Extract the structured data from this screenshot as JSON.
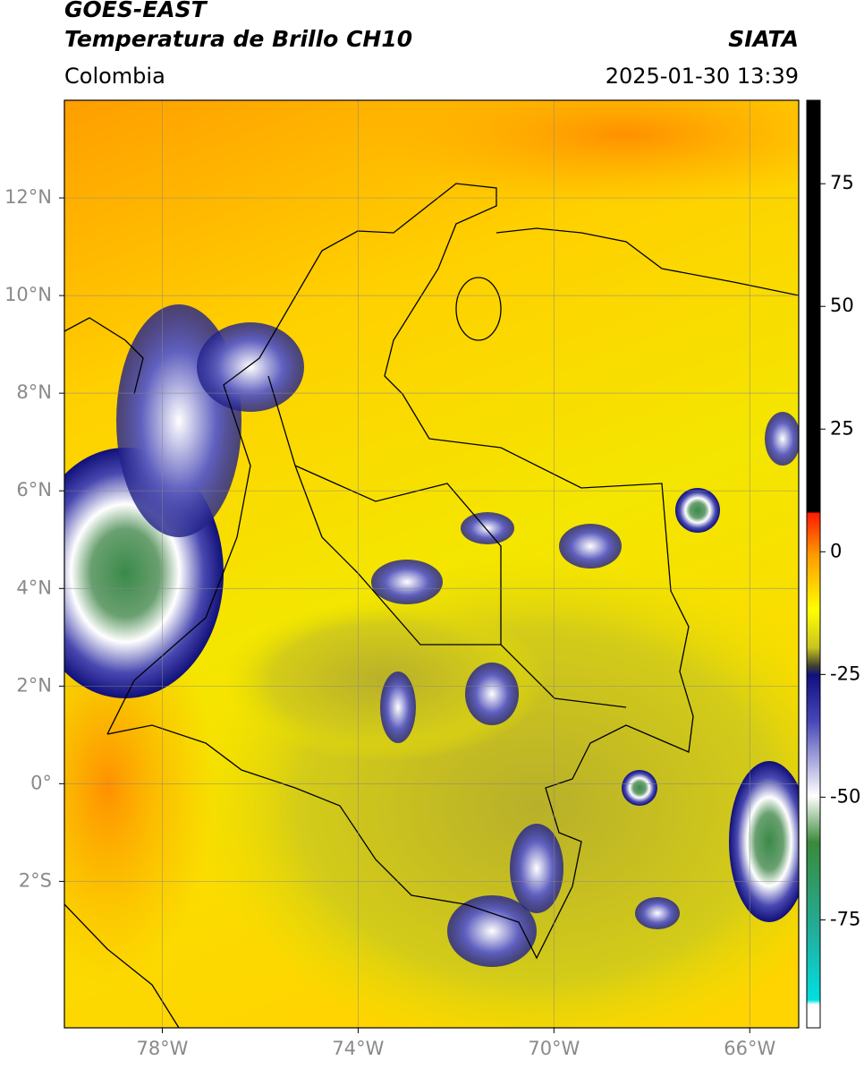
{
  "header": {
    "satellite": "GOES-EAST",
    "product": "Temperatura de Brillo CH10",
    "source": "SIATA",
    "region": "Colombia",
    "datetime": "2025-01-30 13:39"
  },
  "map": {
    "xlim": [
      -80,
      -65
    ],
    "ylim": [
      -5,
      14
    ],
    "xticks": [
      {
        "value": -78,
        "label": "78°W"
      },
      {
        "value": -74,
        "label": "74°W"
      },
      {
        "value": -70,
        "label": "70°W"
      },
      {
        "value": -66,
        "label": "66°W"
      }
    ],
    "yticks": [
      {
        "value": 12,
        "label": "12°N"
      },
      {
        "value": 10,
        "label": "10°N"
      },
      {
        "value": 8,
        "label": "8°N"
      },
      {
        "value": 6,
        "label": "6°N"
      },
      {
        "value": 4,
        "label": "4°N"
      },
      {
        "value": 2,
        "label": "2°N"
      },
      {
        "value": 0,
        "label": "0°"
      },
      {
        "value": -2,
        "label": "2°S"
      }
    ],
    "grid": true
  },
  "colorbar": {
    "lim": [
      -97,
      92
    ],
    "ticks": [
      75,
      50,
      25,
      0,
      -25,
      -50,
      -75
    ]
  }
}
